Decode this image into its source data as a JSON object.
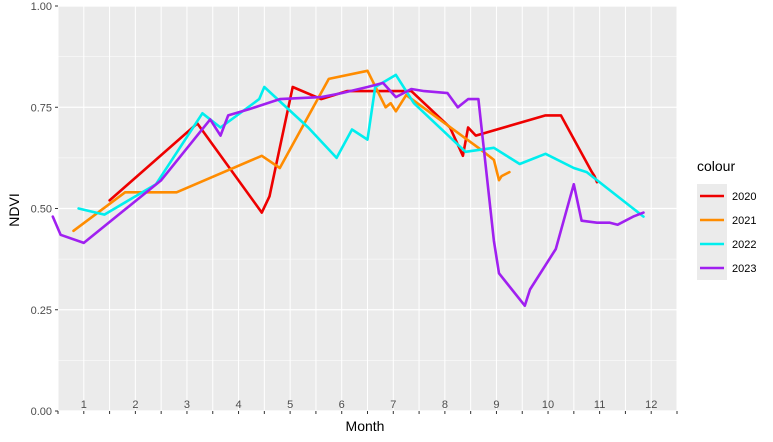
{
  "chart_data": {
    "type": "line",
    "xlabel": "Month",
    "ylabel": "NDVI",
    "ylim": [
      0,
      1
    ],
    "y_ticks": [
      "0.00",
      "0.25",
      "0.50",
      "0.75",
      "1.00"
    ],
    "y_tick_values": [
      0,
      0.25,
      0.5,
      0.75,
      1.0
    ],
    "xlim": [
      0.5,
      12.5
    ],
    "month_labels": [
      "1",
      "2",
      "3",
      "4",
      "5",
      "6",
      "7",
      "8",
      "9",
      "10",
      "11",
      "12"
    ],
    "grid": true,
    "legend": {
      "title": "colour",
      "placement": "right"
    },
    "series": [
      {
        "name": "2020",
        "color": "#ee0000",
        "x": [
          1.5,
          3.2,
          4.45,
          4.6,
          4.75,
          5.05,
          5.6,
          6.1,
          7.05,
          7.35,
          8.1,
          8.35,
          8.45,
          8.6,
          9.95,
          10.25,
          10.85,
          10.9,
          10.95
        ],
        "y": [
          0.52,
          0.71,
          0.49,
          0.53,
          0.62,
          0.8,
          0.77,
          0.79,
          0.79,
          0.79,
          0.7,
          0.63,
          0.7,
          0.68,
          0.73,
          0.73,
          0.59,
          0.58,
          0.565
        ]
      },
      {
        "name": "2021",
        "color": "#ff8c00",
        "x": [
          0.8,
          1.8,
          2.8,
          4.45,
          4.8,
          5.75,
          6.5,
          6.85,
          6.95,
          7.05,
          7.25,
          8.65,
          8.95,
          9.05,
          9.1,
          9.25
        ],
        "y": [
          0.445,
          0.54,
          0.54,
          0.63,
          0.6,
          0.82,
          0.84,
          0.75,
          0.76,
          0.74,
          0.78,
          0.65,
          0.62,
          0.57,
          0.58,
          0.59
        ]
      },
      {
        "name": "2022",
        "color": "#00eeee",
        "x": [
          0.9,
          1.4,
          2.4,
          3.3,
          3.65,
          4.4,
          4.5,
          5.35,
          5.9,
          6.2,
          6.5,
          6.65,
          7.05,
          7.15,
          7.4,
          8.4,
          8.95,
          9.45,
          9.95,
          10.5,
          10.75,
          11.85
        ],
        "y": [
          0.5,
          0.485,
          0.56,
          0.735,
          0.7,
          0.77,
          0.8,
          0.7,
          0.625,
          0.695,
          0.67,
          0.8,
          0.83,
          0.81,
          0.76,
          0.64,
          0.65,
          0.61,
          0.635,
          0.6,
          0.59,
          0.48
        ]
      },
      {
        "name": "2023",
        "color": "#a020f0",
        "x": [
          0.4,
          0.55,
          1.0,
          2.5,
          3.45,
          3.65,
          3.8,
          4.2,
          4.8,
          5.6,
          6.0,
          6.5,
          6.8,
          7.05,
          7.35,
          7.6,
          8.05,
          8.25,
          8.45,
          8.65,
          8.95,
          9.05,
          9.55,
          9.65,
          10.15,
          10.5,
          10.65,
          10.95,
          11.2,
          11.35,
          11.65,
          11.85
        ],
        "y": [
          0.48,
          0.435,
          0.415,
          0.57,
          0.72,
          0.68,
          0.73,
          0.745,
          0.77,
          0.775,
          0.785,
          0.8,
          0.81,
          0.775,
          0.795,
          0.79,
          0.785,
          0.75,
          0.77,
          0.77,
          0.42,
          0.34,
          0.26,
          0.3,
          0.4,
          0.56,
          0.47,
          0.465,
          0.465,
          0.46,
          0.48,
          0.49
        ]
      }
    ]
  }
}
